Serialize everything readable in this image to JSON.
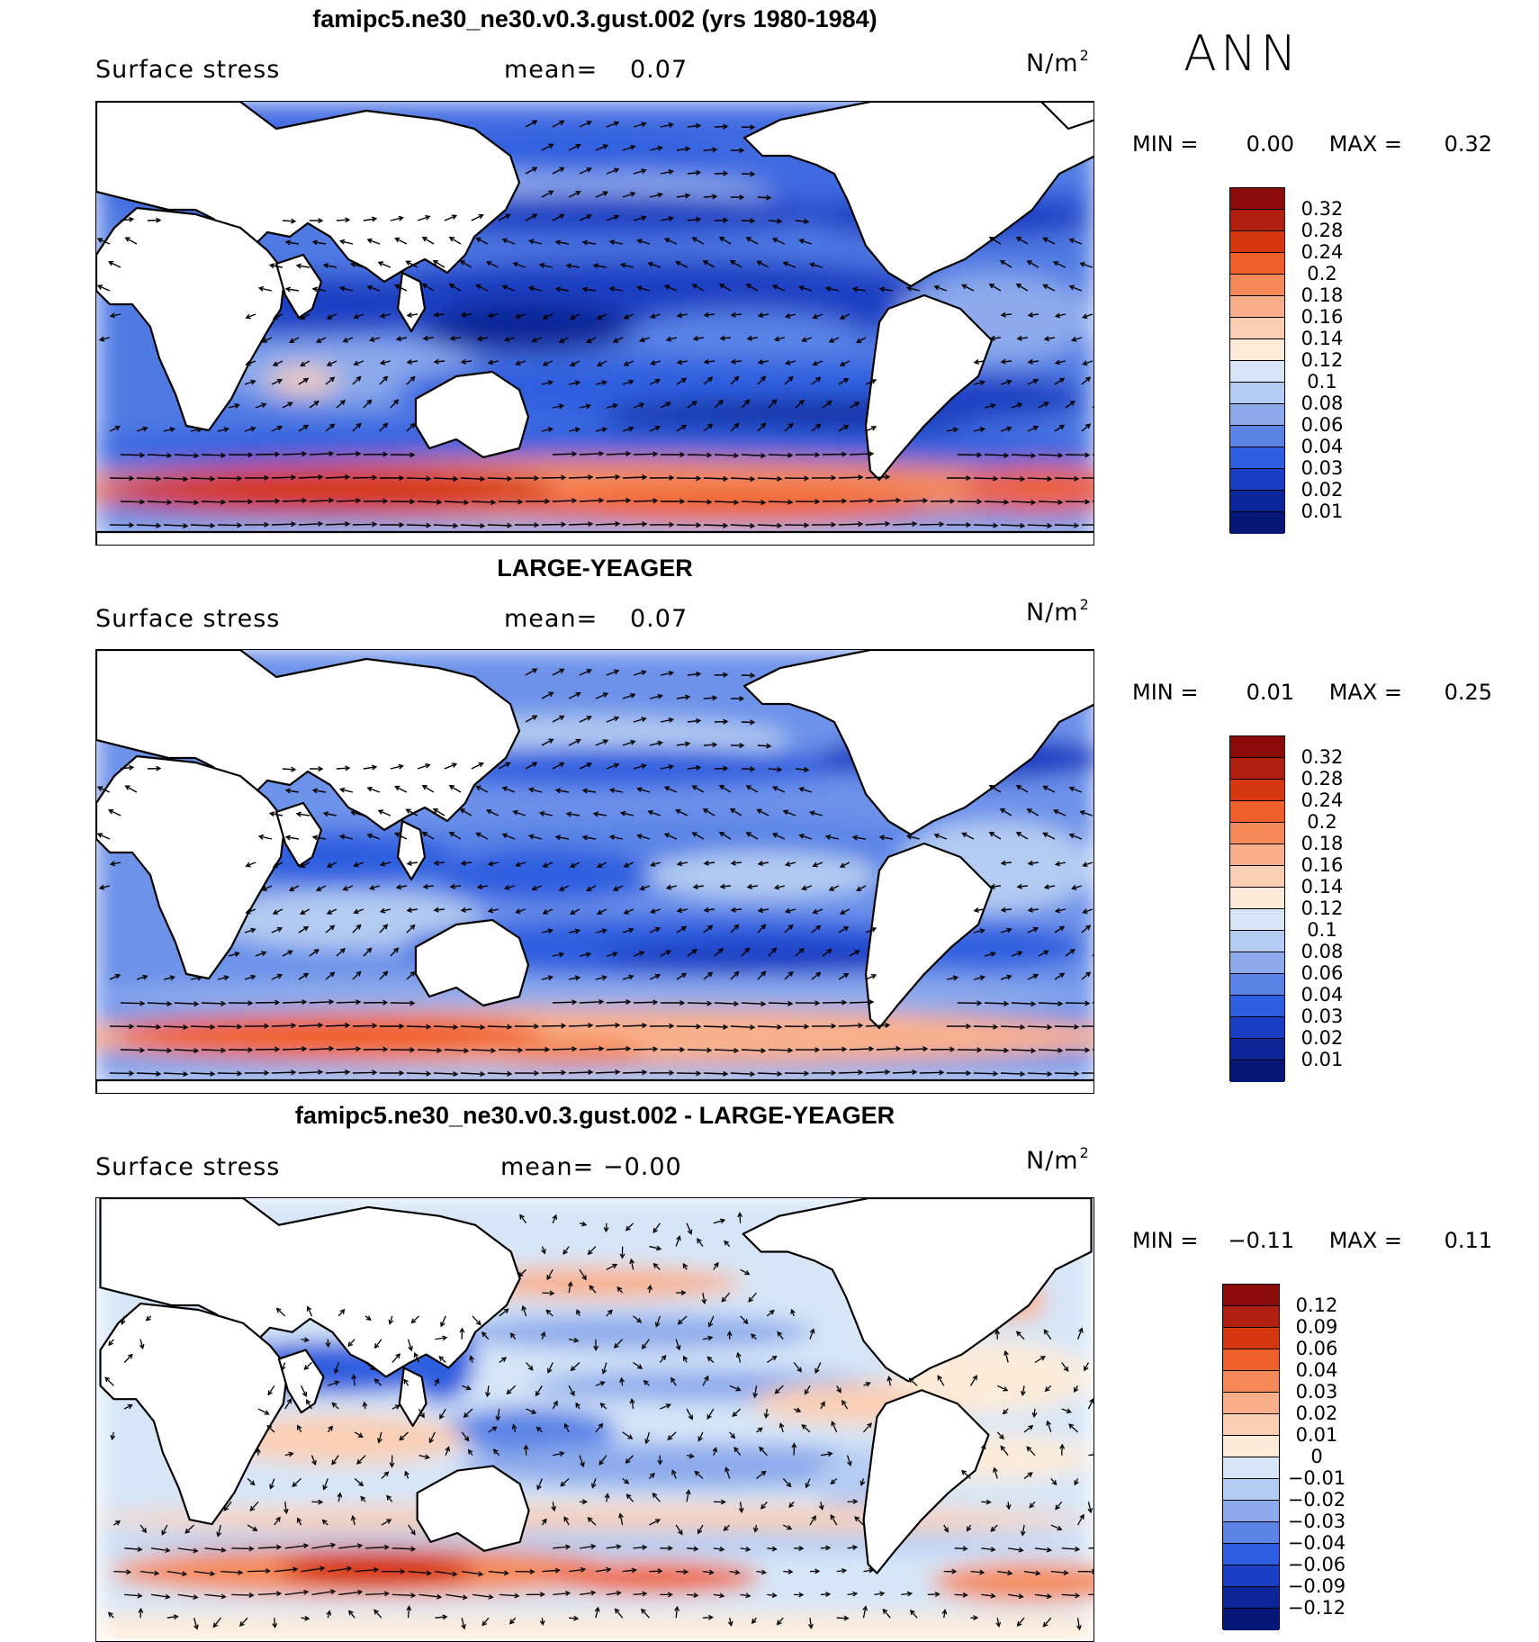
{
  "season": "ANN",
  "panels": [
    {
      "title": "famipc5.ne30_ne30.v0.3.gust.002 (yrs 1980-1984)",
      "variable": "Surface stress",
      "mean_label": "mean=",
      "mean_value": "0.07",
      "units": "N/m",
      "units_sup": "2",
      "min_label": "MIN =",
      "min_value": "0.00",
      "max_label": "MAX =",
      "max_value": "0.32",
      "colorbar_levels": [
        "0.32",
        "0.28",
        "0.24",
        "0.2",
        "0.18",
        "0.16",
        "0.14",
        "0.12",
        "0.1",
        "0.08",
        "0.06",
        "0.04",
        "0.03",
        "0.02",
        "0.01"
      ],
      "colorbar_colors": [
        "#8b0a0a",
        "#b02010",
        "#d7370f",
        "#f0602a",
        "#f58a58",
        "#f9b08a",
        "#fbcfb4",
        "#fdebd8",
        "#d6e6f8",
        "#b4ccf2",
        "#8caaec",
        "#5a84e6",
        "#2e5ee0",
        "#1a3fc4",
        "#0c2599",
        "#061777"
      ]
    },
    {
      "title": "LARGE-YEAGER",
      "variable": "Surface stress",
      "mean_label": "mean=",
      "mean_value": "0.07",
      "units": "N/m",
      "units_sup": "2",
      "min_label": "MIN =",
      "min_value": "0.01",
      "max_label": "MAX =",
      "max_value": "0.25",
      "colorbar_levels": [
        "0.32",
        "0.28",
        "0.24",
        "0.2",
        "0.18",
        "0.16",
        "0.14",
        "0.12",
        "0.1",
        "0.08",
        "0.06",
        "0.04",
        "0.03",
        "0.02",
        "0.01"
      ],
      "colorbar_colors": [
        "#8b0a0a",
        "#b02010",
        "#d7370f",
        "#f0602a",
        "#f58a58",
        "#f9b08a",
        "#fbcfb4",
        "#fdebd8",
        "#d6e6f8",
        "#b4ccf2",
        "#8caaec",
        "#5a84e6",
        "#2e5ee0",
        "#1a3fc4",
        "#0c2599",
        "#061777"
      ]
    },
    {
      "title": "famipc5.ne30_ne30.v0.3.gust.002 - LARGE-YEAGER",
      "variable": "Surface stress",
      "mean_label": "mean=",
      "mean_value": "−0.00",
      "units": "N/m",
      "units_sup": "2",
      "min_label": "MIN =",
      "min_value": "−0.11",
      "max_label": "MAX =",
      "max_value": "0.11",
      "colorbar_levels": [
        "0.12",
        "0.09",
        "0.06",
        "0.04",
        "0.03",
        "0.02",
        "0.01",
        "0",
        "−0.01",
        "−0.02",
        "−0.03",
        "−0.04",
        "−0.06",
        "−0.09",
        "−0.12"
      ],
      "colorbar_colors": [
        "#8b0a0a",
        "#b02010",
        "#d7370f",
        "#f0602a",
        "#f58a58",
        "#f9b08a",
        "#fbcfb4",
        "#fdebd8",
        "#d6e6f8",
        "#b4ccf2",
        "#8caaec",
        "#5a84e6",
        "#2e5ee0",
        "#1a3fc4",
        "#0c2599",
        "#061777"
      ]
    }
  ]
}
